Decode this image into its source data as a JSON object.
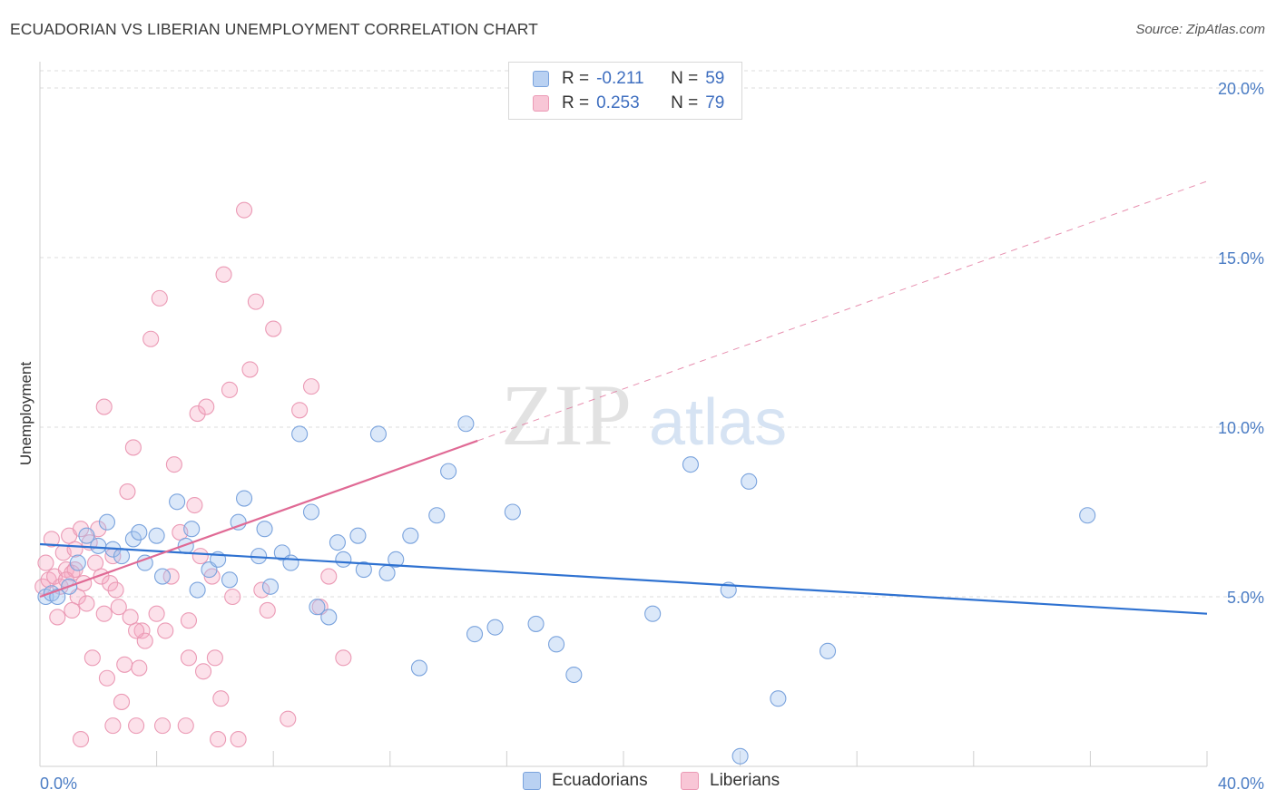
{
  "title": "ECUADORIAN VS LIBERIAN UNEMPLOYMENT CORRELATION CHART",
  "source": "Source: ZipAtlas.com",
  "watermark": {
    "zip": "ZIP",
    "atlas": "atlas"
  },
  "legend": {
    "rows": [
      {
        "r_label": "R =",
        "r_value": "-0.211",
        "n_label": "N =",
        "n_value": "59",
        "color": "#5b8fd6"
      },
      {
        "r_label": "R =",
        "r_value": "0.253",
        "n_label": "N =",
        "n_value": "79",
        "color": "#e8779c"
      }
    ]
  },
  "bottom_legend": {
    "series1": "Ecuadorians",
    "series2": "Liberians"
  },
  "chart_data": {
    "type": "scatter",
    "title": "ECUADORIAN VS LIBERIAN UNEMPLOYMENT CORRELATION CHART",
    "xlabel": "",
    "ylabel": "Unemployment",
    "xlim": [
      0,
      40
    ],
    "ylim": [
      0,
      20.5
    ],
    "x_tick_labels": [
      "0.0%",
      "40.0%"
    ],
    "y_ticks": [
      5,
      10,
      15,
      20
    ],
    "y_tick_labels": [
      "5.0%",
      "10.0%",
      "15.0%",
      "20.0%"
    ],
    "grid": "horizontal dashed",
    "legend_position": "top-center",
    "colors": {
      "ecuadorians": "#5b8fd6",
      "liberians": "#e8779c",
      "eq_line": "#2f72d1",
      "lib_line": "#e06a95"
    },
    "series": [
      {
        "name": "Ecuadorians",
        "points": [
          [
            0.2,
            5.0
          ],
          [
            0.4,
            5.1
          ],
          [
            0.6,
            5.0
          ],
          [
            1.0,
            5.3
          ],
          [
            1.3,
            6.0
          ],
          [
            1.6,
            6.8
          ],
          [
            2.0,
            6.5
          ],
          [
            2.3,
            7.2
          ],
          [
            2.5,
            6.4
          ],
          [
            2.8,
            6.2
          ],
          [
            3.2,
            6.7
          ],
          [
            3.4,
            6.9
          ],
          [
            3.6,
            6.0
          ],
          [
            4.0,
            6.8
          ],
          [
            4.2,
            5.6
          ],
          [
            4.7,
            7.8
          ],
          [
            5.0,
            6.5
          ],
          [
            5.2,
            7.0
          ],
          [
            5.4,
            5.2
          ],
          [
            5.8,
            5.8
          ],
          [
            6.1,
            6.1
          ],
          [
            6.5,
            5.5
          ],
          [
            6.8,
            7.2
          ],
          [
            7.0,
            7.9
          ],
          [
            7.5,
            6.2
          ],
          [
            7.7,
            7.0
          ],
          [
            7.9,
            5.3
          ],
          [
            8.3,
            6.3
          ],
          [
            8.6,
            6.0
          ],
          [
            8.9,
            9.8
          ],
          [
            9.3,
            7.5
          ],
          [
            9.5,
            4.7
          ],
          [
            9.9,
            4.4
          ],
          [
            10.2,
            6.6
          ],
          [
            10.4,
            6.1
          ],
          [
            10.9,
            6.8
          ],
          [
            11.1,
            5.8
          ],
          [
            11.6,
            9.8
          ],
          [
            11.9,
            5.7
          ],
          [
            12.2,
            6.1
          ],
          [
            12.7,
            6.8
          ],
          [
            13.0,
            2.9
          ],
          [
            13.6,
            7.4
          ],
          [
            14.0,
            8.7
          ],
          [
            14.6,
            10.1
          ],
          [
            14.9,
            3.9
          ],
          [
            15.6,
            4.1
          ],
          [
            16.2,
            7.5
          ],
          [
            17.0,
            4.2
          ],
          [
            17.7,
            3.6
          ],
          [
            18.3,
            2.7
          ],
          [
            21.0,
            4.5
          ],
          [
            22.3,
            8.9
          ],
          [
            23.6,
            5.2
          ],
          [
            24.3,
            8.4
          ],
          [
            25.3,
            2.0
          ],
          [
            27.0,
            3.4
          ],
          [
            24.0,
            0.3
          ],
          [
            35.9,
            7.4
          ]
        ]
      },
      {
        "name": "Liberians",
        "points": [
          [
            0.1,
            5.3
          ],
          [
            0.2,
            6.0
          ],
          [
            0.3,
            5.5
          ],
          [
            0.4,
            6.7
          ],
          [
            0.5,
            5.6
          ],
          [
            0.6,
            4.4
          ],
          [
            0.7,
            5.3
          ],
          [
            0.8,
            6.3
          ],
          [
            0.9,
            5.8
          ],
          [
            1.0,
            6.8
          ],
          [
            1.1,
            5.7
          ],
          [
            1.2,
            6.4
          ],
          [
            1.3,
            5.0
          ],
          [
            1.4,
            7.0
          ],
          [
            1.5,
            5.4
          ],
          [
            1.6,
            4.8
          ],
          [
            1.7,
            6.6
          ],
          [
            1.8,
            3.2
          ],
          [
            1.9,
            6.0
          ],
          [
            2.0,
            7.0
          ],
          [
            2.1,
            5.6
          ],
          [
            2.2,
            4.5
          ],
          [
            2.3,
            2.6
          ],
          [
            2.4,
            5.4
          ],
          [
            2.5,
            6.2
          ],
          [
            2.6,
            5.2
          ],
          [
            2.7,
            4.7
          ],
          [
            2.8,
            1.9
          ],
          [
            2.9,
            3.0
          ],
          [
            3.0,
            8.1
          ],
          [
            3.1,
            4.4
          ],
          [
            3.2,
            9.4
          ],
          [
            3.3,
            1.2
          ],
          [
            3.4,
            2.9
          ],
          [
            3.5,
            4.0
          ],
          [
            3.6,
            3.7
          ],
          [
            3.8,
            12.6
          ],
          [
            4.0,
            4.5
          ],
          [
            4.1,
            13.8
          ],
          [
            4.2,
            1.2
          ],
          [
            4.3,
            4.0
          ],
          [
            4.5,
            5.6
          ],
          [
            4.6,
            8.9
          ],
          [
            4.8,
            6.9
          ],
          [
            5.0,
            1.2
          ],
          [
            5.1,
            4.3
          ],
          [
            5.3,
            7.7
          ],
          [
            5.4,
            10.4
          ],
          [
            5.5,
            6.2
          ],
          [
            5.6,
            2.8
          ],
          [
            5.7,
            10.6
          ],
          [
            5.9,
            5.6
          ],
          [
            6.0,
            3.2
          ],
          [
            6.1,
            0.8
          ],
          [
            6.2,
            2.0
          ],
          [
            6.3,
            14.5
          ],
          [
            6.5,
            11.1
          ],
          [
            6.6,
            5.0
          ],
          [
            6.8,
            0.8
          ],
          [
            7.0,
            16.4
          ],
          [
            7.2,
            11.7
          ],
          [
            7.4,
            13.7
          ],
          [
            7.6,
            5.2
          ],
          [
            7.8,
            4.6
          ],
          [
            8.0,
            12.9
          ],
          [
            8.5,
            1.4
          ],
          [
            8.9,
            10.5
          ],
          [
            9.3,
            11.2
          ],
          [
            9.6,
            4.7
          ],
          [
            9.9,
            5.6
          ],
          [
            10.4,
            3.2
          ],
          [
            1.2,
            5.8
          ],
          [
            0.9,
            5.5
          ],
          [
            1.1,
            4.6
          ],
          [
            2.2,
            10.6
          ],
          [
            1.4,
            0.8
          ],
          [
            2.5,
            1.2
          ],
          [
            3.3,
            4.0
          ],
          [
            5.1,
            3.2
          ]
        ]
      }
    ],
    "trend_lines": [
      {
        "series": "Ecuadorians",
        "x": [
          0,
          40
        ],
        "y": [
          6.55,
          4.5
        ],
        "style": "solid"
      },
      {
        "series": "Liberians",
        "x": [
          0,
          15
        ],
        "y": [
          5.0,
          9.6
        ],
        "style": "solid"
      },
      {
        "series": "Liberians",
        "x": [
          15,
          40
        ],
        "y": [
          9.6,
          17.25
        ],
        "style": "dashed"
      }
    ]
  }
}
